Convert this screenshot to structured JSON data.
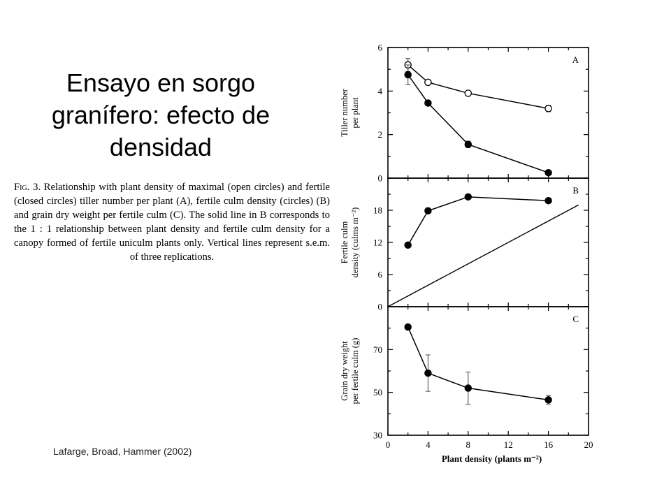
{
  "slide": {
    "title": "Ensayo en sorgo granífero: efecto de densidad",
    "caption_label": "Fig. 3.",
    "caption_text": "Relationship with plant density of maximal (open circles) and fertile (closed circles) tiller number per plant (A), fertile culm density (circles) (B) and grain dry weight per fertile culm (C). The solid line in B corresponds to the 1 : 1 relationship between plant density and fertile culm density for a canopy formed of fertile uniculm plants only. Vertical lines represent s.e.m. of three replications.",
    "citation": "Lafarge, Broad, Hammer (2002)"
  },
  "chart_data": [
    {
      "type": "line",
      "panel": "A",
      "ylabel": "Tiller number per plant",
      "ylim": [
        0,
        6
      ],
      "yticks": [
        0,
        2,
        4,
        6
      ],
      "xlim": [
        0,
        20
      ],
      "series": [
        {
          "x": [
            2,
            4,
            8,
            16
          ],
          "values": [
            5.2,
            4.4,
            3.9,
            3.2
          ],
          "err": [
            0.3,
            0.05,
            0.05,
            0.15
          ],
          "marker": "open-circle"
        },
        {
          "x": [
            2,
            4,
            8,
            16
          ],
          "values": [
            4.75,
            3.45,
            1.55,
            0.25
          ],
          "err": [
            0.45,
            0.05,
            0.15,
            0.05
          ],
          "marker": "filled-circle"
        }
      ]
    },
    {
      "type": "line",
      "panel": "B",
      "ylabel": "Fertile culm density (culms m⁻²)",
      "ylim": [
        0,
        24
      ],
      "yticks": [
        0,
        6,
        12,
        18
      ],
      "xlim": [
        0,
        20
      ],
      "series": [
        {
          "x": [
            2,
            4,
            8,
            16
          ],
          "values": [
            11.5,
            17.9,
            20.5,
            19.8
          ],
          "err": [
            0,
            0,
            0,
            0
          ],
          "marker": "filled-circle"
        }
      ],
      "reference_line": {
        "x": [
          0,
          19
        ],
        "values": [
          0,
          19
        ]
      }
    },
    {
      "type": "line",
      "panel": "C",
      "ylabel": "Grain dry weight per fertile culm (g)",
      "ylim": [
        30,
        90
      ],
      "yticks": [
        30,
        50,
        70
      ],
      "xlim": [
        0,
        20
      ],
      "xticks": [
        0,
        4,
        8,
        12,
        16,
        20
      ],
      "xlabel": "Plant density (plants m⁻²)",
      "series": [
        {
          "x": [
            2,
            4,
            8,
            16
          ],
          "values": [
            80.5,
            59,
            52,
            46.5
          ],
          "err": [
            0,
            8.5,
            7.5,
            2
          ],
          "marker": "filled-circle"
        }
      ]
    }
  ]
}
